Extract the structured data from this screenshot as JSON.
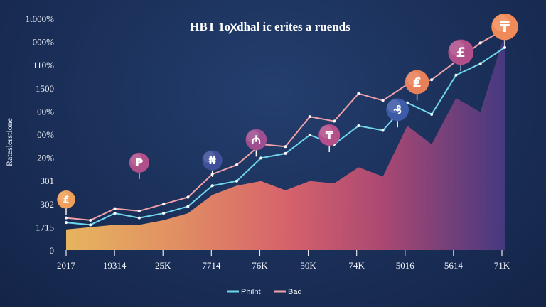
{
  "chart_data": {
    "type": "area",
    "title": "HBT 1oꭗdhal ic erites a ruends",
    "ylabel": "Rateslerstione",
    "xlabel": "",
    "y_tick_labels": [
      "1t000%",
      "000%",
      "110%",
      "1500",
      "00%",
      "00%",
      "20%",
      "301",
      "302",
      "1715",
      "0"
    ],
    "x_tick_labels": [
      "2017",
      "19314",
      "25K",
      "7714",
      "76K",
      "50K",
      "74K",
      "5016",
      "5614",
      "71K"
    ],
    "ylim": [
      0,
      100
    ],
    "grid": false,
    "legend_position": "bottom-center",
    "x": [
      0,
      0.5,
      1,
      1.5,
      2,
      2.5,
      3,
      3.5,
      4,
      4.5,
      5,
      5.5,
      6,
      6.5,
      7,
      7.5,
      8,
      8.5,
      9
    ],
    "series": [
      {
        "name": "Philnt",
        "color": "#6fd6ea",
        "values": [
          12,
          11,
          16,
          14,
          16,
          19,
          28,
          30,
          40,
          42,
          50,
          46,
          54,
          52,
          64,
          59,
          76,
          81,
          88
        ]
      },
      {
        "name": "Bad",
        "color": "#f0a0a8",
        "values": [
          14,
          13,
          18,
          17,
          20,
          23,
          33,
          37,
          46,
          45,
          58,
          56,
          68,
          65,
          72,
          74,
          82,
          90,
          96
        ]
      }
    ],
    "area_top": [
      9,
      10,
      11,
      11,
      13,
      16,
      24,
      28,
      30,
      26,
      30,
      29,
      36,
      32,
      54,
      46,
      66,
      60,
      94
    ],
    "area_colors": [
      "#f5b25e",
      "#f08a62",
      "#e85f72",
      "#c2496f",
      "#8a3f7a",
      "#5f3d7e"
    ],
    "badges": [
      {
        "symbol": "₤",
        "x": 0,
        "value": 22,
        "color": "#f0a05a"
      },
      {
        "symbol": "₱",
        "x": 1.5,
        "value": 38,
        "color": "#b0508a"
      },
      {
        "symbol": "₦",
        "x": 3,
        "value": 39,
        "color": "#3f4f9a"
      },
      {
        "symbol": "₼",
        "x": 3.9,
        "value": 48,
        "color": "#9f4f8f"
      },
      {
        "symbol": "₸",
        "x": 5.4,
        "value": 50,
        "color": "#b44f8a"
      },
      {
        "symbol": "₰",
        "x": 6.8,
        "value": 61,
        "color": "#3d5ba6"
      },
      {
        "symbol": "₤",
        "x": 7.2,
        "value": 73,
        "color": "#e8805a"
      },
      {
        "symbol": "£",
        "x": 8.1,
        "value": 86,
        "color": "#b04f8a"
      },
      {
        "symbol": "₸",
        "x": 9,
        "value": 97,
        "color": "#f08a58"
      }
    ]
  }
}
